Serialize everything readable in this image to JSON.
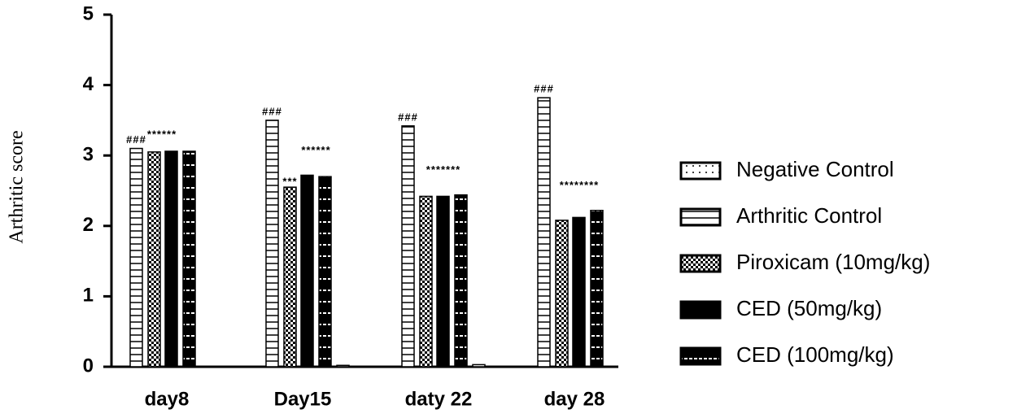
{
  "chart_data": {
    "type": "bar",
    "y_label": "Arthritic score",
    "categories": [
      "day8",
      "Day15",
      "daty 22",
      "day 28"
    ],
    "series": [
      {
        "name": "Negative Control",
        "color": "#000000",
        "pattern": "dotted",
        "values": [
          0,
          0.02,
          0.03,
          0
        ]
      },
      {
        "name": "Arthritic Control",
        "color": "#000000",
        "pattern": "hlines",
        "values": [
          3.1,
          3.5,
          3.42,
          3.82
        ]
      },
      {
        "name": "Piroxicam (10mg/kg)",
        "color": "#000000",
        "pattern": "checker",
        "values": [
          3.05,
          2.55,
          2.42,
          2.08
        ]
      },
      {
        "name": "CED (50mg/kg)",
        "color": "#000000",
        "pattern": "solid",
        "values": [
          3.06,
          2.72,
          2.42,
          2.12
        ]
      },
      {
        "name": "CED (100mg/kg)",
        "color": "#000000",
        "pattern": "dashed",
        "values": [
          3.06,
          2.7,
          2.44,
          2.22
        ]
      }
    ],
    "annotations": [
      [
        "###",
        "******"
      ],
      [
        "###",
        "***",
        "******"
      ],
      [
        "###",
        "*******"
      ],
      [
        "###",
        "********"
      ]
    ],
    "ylim": [
      0,
      5
    ],
    "yticks": [
      0,
      1,
      2,
      3,
      4,
      5
    ],
    "legend": "right"
  }
}
